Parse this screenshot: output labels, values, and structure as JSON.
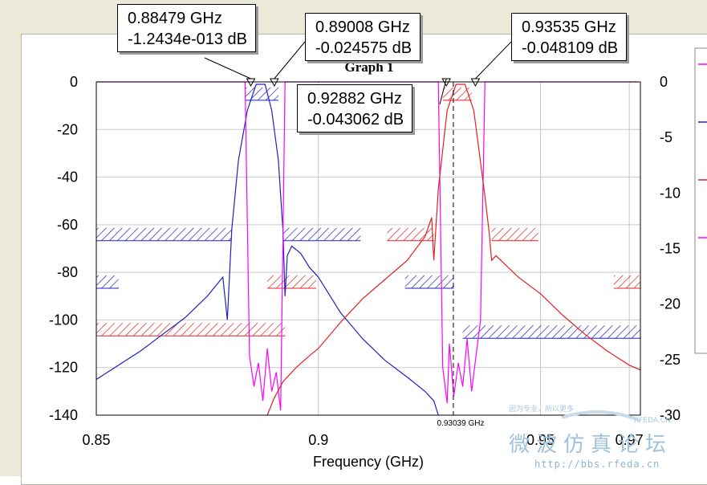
{
  "chart_data": {
    "type": "line",
    "title": "Graph 1",
    "xlabel": "Frequency (GHz)",
    "xlim": [
      0.85,
      0.9725
    ],
    "ylim_left": [
      -140,
      0
    ],
    "ylim_right": [
      -30,
      0
    ],
    "x_ticks": [
      "0.85",
      "0.9",
      "0.95",
      "0.97"
    ],
    "x_tick_values": [
      0.85,
      0.9,
      0.95,
      0.97
    ],
    "y_ticks_left": [
      "0",
      "-20",
      "-40",
      "-60",
      "-80",
      "-100",
      "-120",
      "-140"
    ],
    "y_tick_values_left": [
      0,
      -20,
      -40,
      -60,
      -80,
      -100,
      -120,
      -140
    ],
    "y_ticks_right": [
      "0",
      "-5",
      "-10",
      "-15",
      "-20",
      "-25",
      "-30"
    ],
    "y_tick_values_right": [
      0,
      -5,
      -10,
      -15,
      -20,
      -25,
      -30
    ],
    "grid": true,
    "cursor_label": "0.93039 GHz",
    "cursor_x": 0.93039,
    "markers": [
      {
        "freq": "0.88479 GHz",
        "value": "-1.2434e-013 dB",
        "x": 0.88479
      },
      {
        "freq": "0.89008 GHz",
        "value": "-0.024575 dB",
        "x": 0.89008
      },
      {
        "freq": "0.92882 GHz",
        "value": "-0.043062 dB",
        "x": 0.92882
      },
      {
        "freq": "0.93535 GHz",
        "value": "-0.048109 dB",
        "x": 0.93535
      }
    ],
    "series": [
      {
        "color": "#2020c0",
        "axis": "left",
        "x": [
          0.85,
          0.855,
          0.86,
          0.865,
          0.87,
          0.875,
          0.8785,
          0.8795,
          0.8805,
          0.882,
          0.884,
          0.886,
          0.888,
          0.8895,
          0.891,
          0.892,
          0.8925,
          0.893,
          0.894,
          0.896,
          0.898,
          0.9,
          0.905,
          0.91,
          0.915,
          0.92,
          0.924,
          0.926,
          0.927
        ],
        "y": [
          -125,
          -119,
          -113,
          -106,
          -99,
          -90,
          -82,
          -100,
          -62,
          -33,
          -12,
          -1,
          -1,
          -12,
          -33,
          -62,
          -90,
          -73,
          -69,
          -72,
          -78,
          -82,
          -97,
          -108,
          -117,
          -124,
          -130,
          -134,
          -140
        ]
      },
      {
        "color": "#ff00ff",
        "axis": "left",
        "x": [
          0.85,
          0.8835,
          0.8845,
          0.8855,
          0.8865,
          0.8875,
          0.8885,
          0.8895,
          0.8905,
          0.8915,
          0.8925,
          0.927,
          0.928,
          0.929,
          0.9295,
          0.9305,
          0.9315,
          0.9325,
          0.9335,
          0.9345,
          0.9355,
          0.9365,
          0.9375,
          0.972
        ],
        "y": [
          0,
          0,
          -115,
          -128,
          -118,
          -134,
          -112,
          -130,
          -122,
          -138,
          0,
          0,
          -120,
          -135,
          -110,
          -132,
          -118,
          -128,
          -108,
          -130,
          -115,
          -100,
          0,
          0
        ]
      },
      {
        "color": "#e02020",
        "axis": "left",
        "x": [
          0.8885,
          0.89,
          0.892,
          0.895,
          0.898,
          0.9,
          0.905,
          0.91,
          0.915,
          0.92,
          0.924,
          0.9255,
          0.926,
          0.927,
          0.929,
          0.931,
          0.933,
          0.935,
          0.9375,
          0.9385,
          0.939,
          0.94,
          0.945,
          0.95,
          0.955,
          0.96,
          0.965,
          0.97,
          0.9725
        ],
        "y": [
          -140,
          -133,
          -126,
          -120,
          -115,
          -112,
          -101,
          -91,
          -83,
          -75,
          -65,
          -57,
          -75,
          -45,
          -12,
          -1,
          -1,
          -12,
          -48,
          -64,
          -75,
          -73,
          -82,
          -89,
          -98,
          -106,
          -113,
          -119,
          -121
        ]
      }
    ],
    "spec_bands": [
      {
        "color": "#2020c0",
        "x0": 0.85,
        "x1": 0.8805,
        "y": -64
      },
      {
        "color": "#2020c0",
        "x0": 0.892,
        "x1": 0.9095,
        "y": -64
      },
      {
        "color": "#2020c0",
        "x0": 0.85,
        "x1": 0.855,
        "y": -84
      },
      {
        "color": "#2020c0",
        "x0": 0.8835,
        "x1": 0.891,
        "y": -5
      },
      {
        "color": "#2020c0",
        "x0": 0.9195,
        "x1": 0.9305,
        "y": -84
      },
      {
        "color": "#2020c0",
        "x0": 0.9325,
        "x1": 0.9725,
        "y": -105
      },
      {
        "color": "#e02020",
        "x0": 0.85,
        "x1": 0.8925,
        "y": -104
      },
      {
        "color": "#e02020",
        "x0": 0.8885,
        "x1": 0.8995,
        "y": -84
      },
      {
        "color": "#e02020",
        "x0": 0.9155,
        "x1": 0.926,
        "y": -64
      },
      {
        "color": "#e02020",
        "x0": 0.939,
        "x1": 0.9495,
        "y": -64
      },
      {
        "color": "#e02020",
        "x0": 0.928,
        "x1": 0.9345,
        "y": -5
      },
      {
        "color": "#e02020",
        "x0": 0.9665,
        "x1": 0.9725,
        "y": -84
      }
    ]
  },
  "watermark": {
    "main": "微波仿真论坛",
    "url": "http://bbs.rfeda.cn",
    "small_left": "因为专业，所以更多",
    "small_right": "RFEDA.CN"
  },
  "legend_colors": [
    "#ff00ff",
    "#2020c0",
    "#e02020",
    "#ff00ff"
  ]
}
